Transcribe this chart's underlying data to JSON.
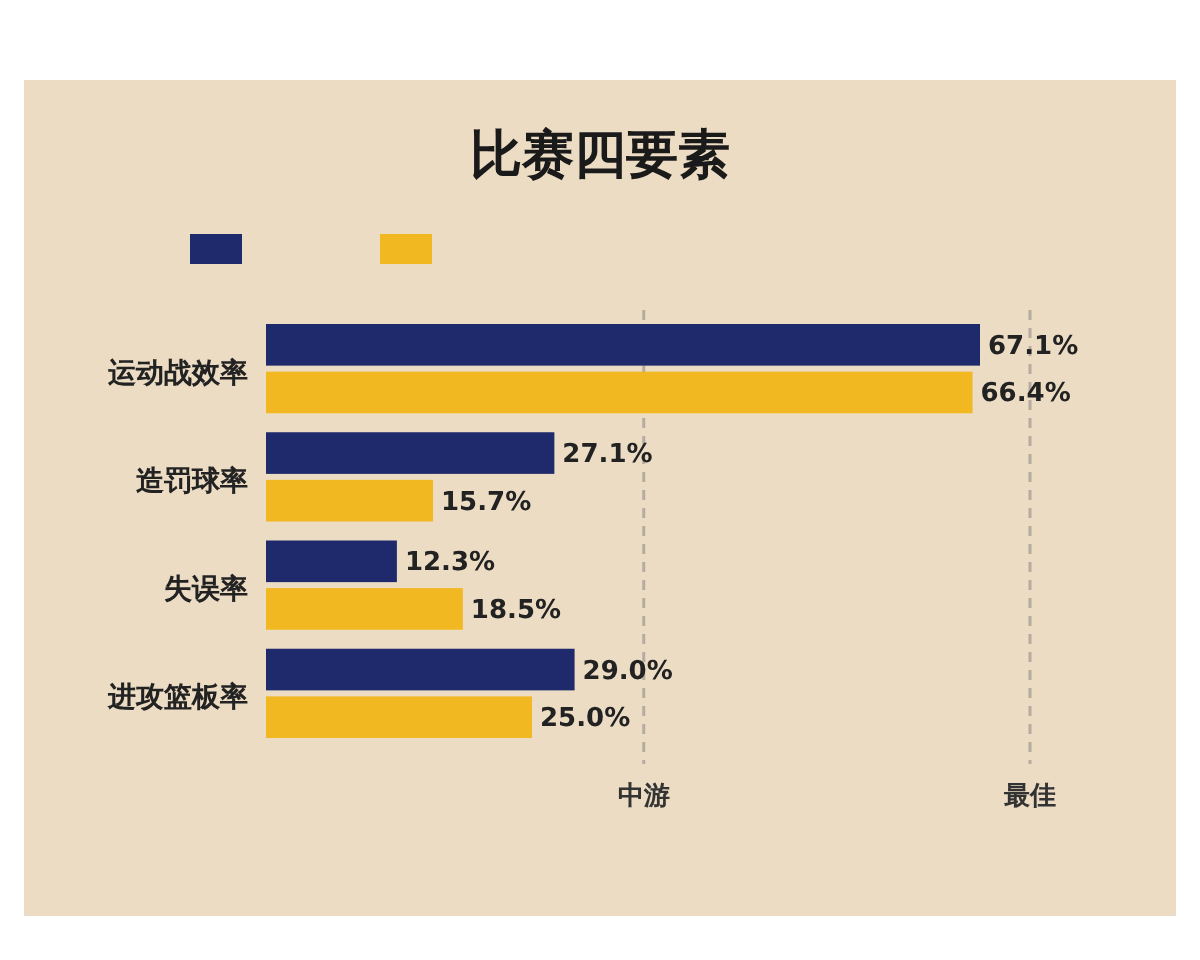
{
  "chart_data": {
    "type": "bar",
    "orientation": "horizontal",
    "title": "比赛四要素",
    "categories": [
      "运动战效率",
      "造罚球率",
      "失误率",
      "进攻篮板率"
    ],
    "series": [
      {
        "color": "#1e2a6b",
        "values": [
          67.1,
          27.1,
          12.3,
          29.0
        ],
        "value_labels": [
          "67.1%",
          "27.1%",
          "12.3%",
          "29.0%"
        ]
      },
      {
        "color": "#f2b822",
        "values": [
          66.4,
          15.7,
          18.5,
          25.0
        ],
        "value_labels": [
          "66.4%",
          "15.7%",
          "18.5%",
          "25.0%"
        ]
      }
    ],
    "ref_lines": [
      {
        "axis": "x",
        "value": 35.5,
        "label": "中游",
        "line_style": "dashed",
        "color": "#b5aca0"
      },
      {
        "axis": "x",
        "value": 71.8,
        "label": "最佳",
        "line_style": "dashed",
        "color": "#b5aca0"
      }
    ]
  }
}
